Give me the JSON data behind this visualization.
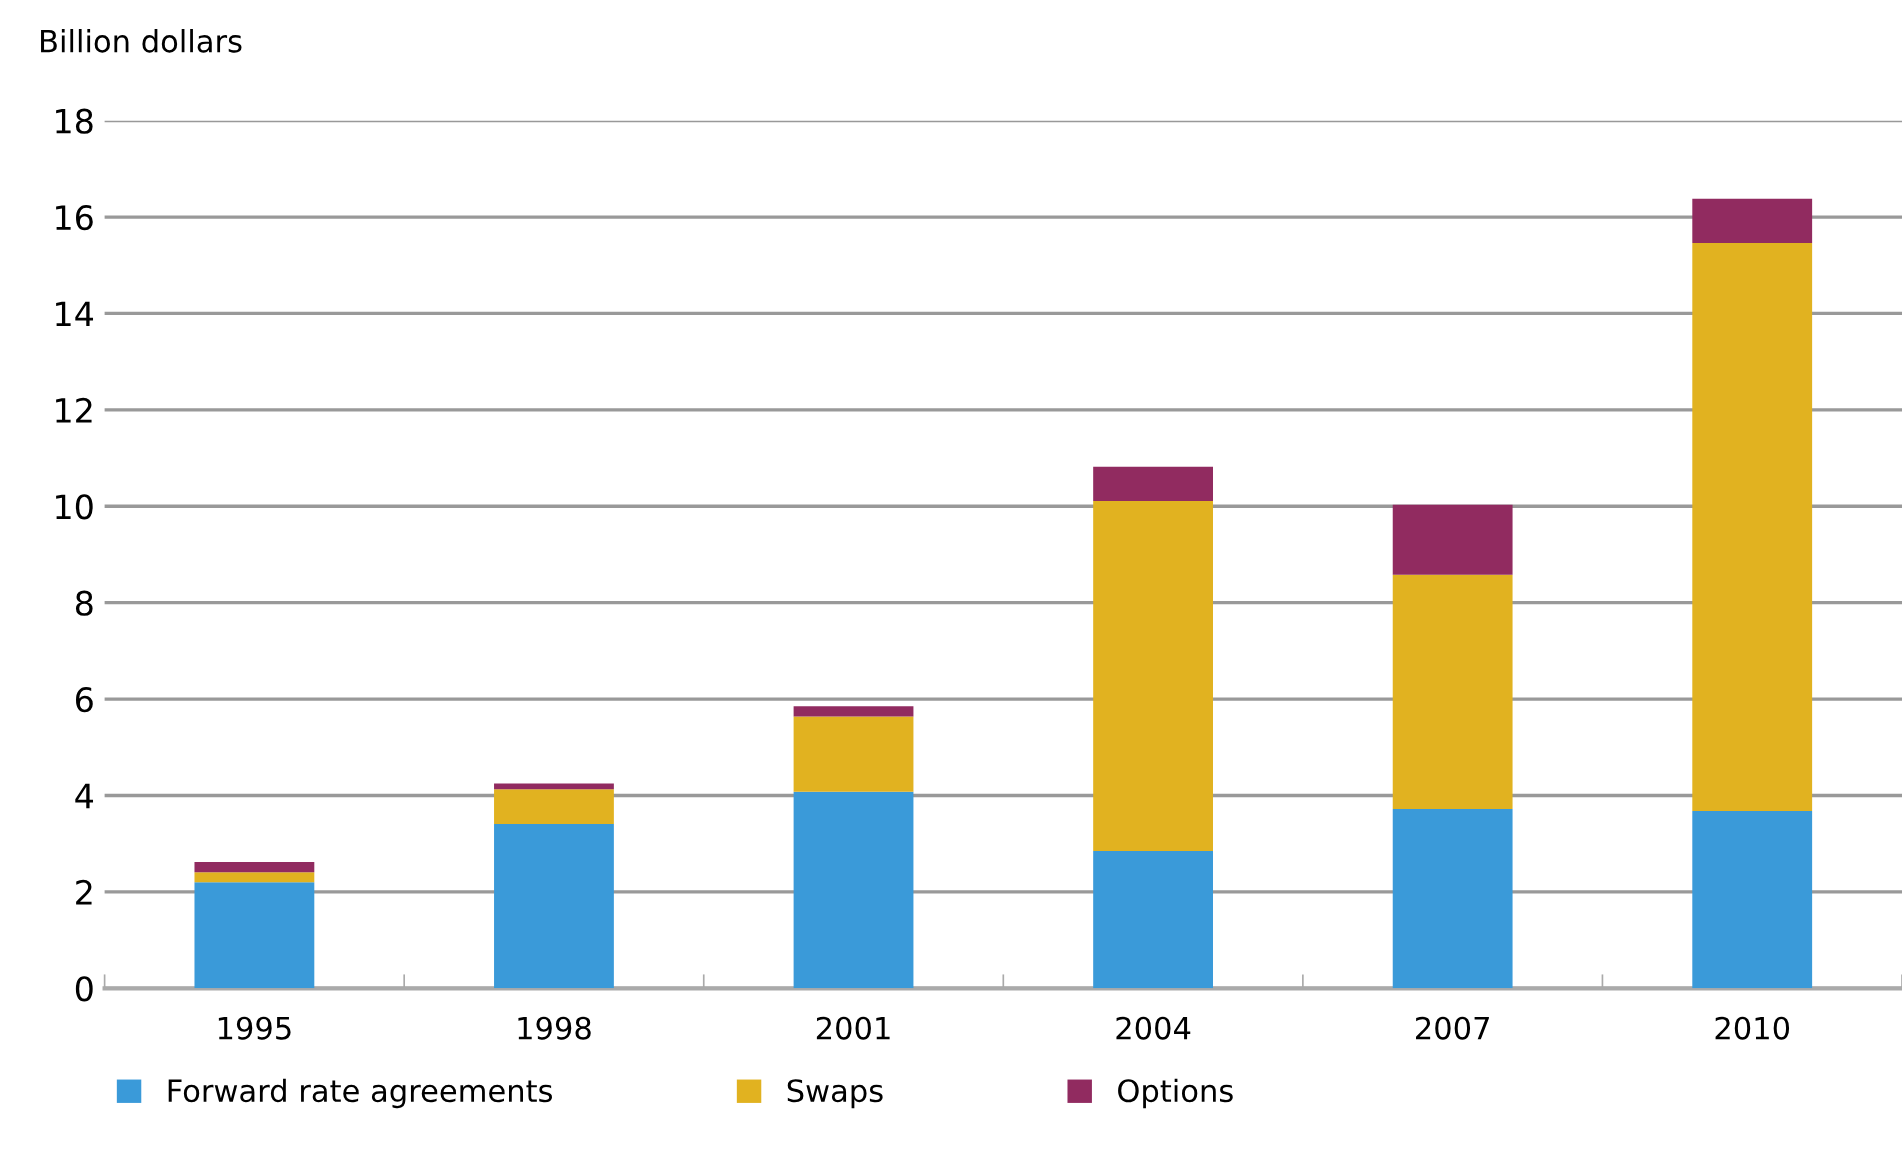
{
  "chart_data": {
    "type": "bar",
    "stacked": true,
    "ylabel": "Billion dollars",
    "categories": [
      "1995",
      "1998",
      "2001",
      "2004",
      "2007",
      "2010"
    ],
    "series": [
      {
        "name": "Forward rate agreements",
        "color": "#3a9ad9",
        "values": [
          2.2,
          3.41,
          4.08,
          2.85,
          3.72,
          3.68
        ]
      },
      {
        "name": "Swaps",
        "color": "#e1b220",
        "values": [
          0.21,
          0.72,
          1.56,
          7.26,
          4.86,
          11.78
        ]
      },
      {
        "name": "Options",
        "color": "#912b60",
        "values": [
          0.21,
          0.12,
          0.21,
          0.71,
          1.45,
          0.92
        ]
      }
    ],
    "ylim": [
      0,
      18
    ],
    "yticks": [
      0,
      2,
      4,
      6,
      8,
      10,
      12,
      14,
      16,
      18
    ],
    "grid": "y",
    "legend": "bottom"
  }
}
